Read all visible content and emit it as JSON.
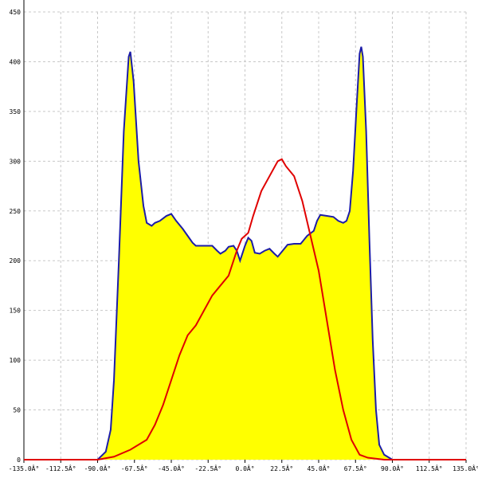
{
  "chart_data": {
    "type": "area",
    "xlim": [
      -135,
      135
    ],
    "ylim": [
      0,
      450
    ],
    "xticks": [
      {
        "value": -135,
        "label": "-135.0Â°"
      },
      {
        "value": -112.5,
        "label": "-112.5Â°"
      },
      {
        "value": -90,
        "label": "-90.0Â°"
      },
      {
        "value": -67.5,
        "label": "-67.5Â°"
      },
      {
        "value": -45,
        "label": "-45.0Â°"
      },
      {
        "value": -22.5,
        "label": "-22.5Â°"
      },
      {
        "value": 0,
        "label": "0.0Â°"
      },
      {
        "value": 22.5,
        "label": "22.5Â°"
      },
      {
        "value": 45,
        "label": "45.0Â°"
      },
      {
        "value": 67.5,
        "label": "67.5Â°"
      },
      {
        "value": 90,
        "label": "90.0Â°"
      },
      {
        "value": 112.5,
        "label": "112.5Â°"
      },
      {
        "value": 135,
        "label": "135.0Â°"
      }
    ],
    "yticks": [
      0,
      50,
      100,
      150,
      200,
      250,
      300,
      350,
      400,
      450
    ],
    "grid": true,
    "series": [
      {
        "color": "#1c1ca8",
        "fill": "#ffff00",
        "x": [
          -135,
          -90,
          -85,
          -82,
          -80,
          -77,
          -74,
          -71,
          -70,
          -68,
          -65,
          -62,
          -60,
          -57,
          -55,
          -52,
          -48,
          -45,
          -42,
          -38,
          -35,
          -32,
          -30,
          -25,
          -20,
          -17,
          -15,
          -12,
          -10,
          -7,
          -5,
          -3,
          0,
          2,
          4,
          6,
          9,
          12,
          15,
          18,
          20,
          23,
          26,
          30,
          34,
          38,
          42,
          44,
          46,
          50,
          54,
          57,
          60,
          62,
          64,
          66,
          68,
          70,
          71,
          72,
          74,
          76,
          78,
          80,
          82,
          85,
          90,
          135
        ],
        "values": [
          0,
          0,
          8,
          30,
          80,
          200,
          330,
          405,
          410,
          380,
          300,
          255,
          238,
          235,
          238,
          240,
          245,
          247,
          240,
          232,
          225,
          218,
          215,
          215,
          215,
          210,
          207,
          210,
          214,
          215,
          210,
          200,
          215,
          223,
          220,
          208,
          207,
          210,
          212,
          207,
          204,
          210,
          216,
          217,
          217,
          225,
          230,
          240,
          246,
          245,
          244,
          240,
          238,
          240,
          250,
          290,
          350,
          408,
          415,
          405,
          330,
          220,
          120,
          50,
          15,
          5,
          0,
          0
        ]
      },
      {
        "color": "#e00000",
        "x": [
          -135,
          -90,
          -80,
          -70,
          -60,
          -55,
          -50,
          -45,
          -40,
          -35,
          -30,
          -25,
          -20,
          -15,
          -10,
          -5,
          -2,
          0,
          2,
          5,
          10,
          15,
          20,
          22.5,
          25,
          30,
          35,
          40,
          45,
          50,
          55,
          60,
          65,
          70,
          75,
          85,
          135
        ],
        "values": [
          0,
          0,
          3,
          10,
          20,
          35,
          55,
          80,
          105,
          125,
          135,
          150,
          165,
          175,
          185,
          210,
          222,
          225,
          228,
          245,
          270,
          285,
          300,
          302,
          295,
          285,
          260,
          225,
          190,
          140,
          90,
          50,
          20,
          5,
          2,
          0,
          0
        ]
      }
    ]
  }
}
